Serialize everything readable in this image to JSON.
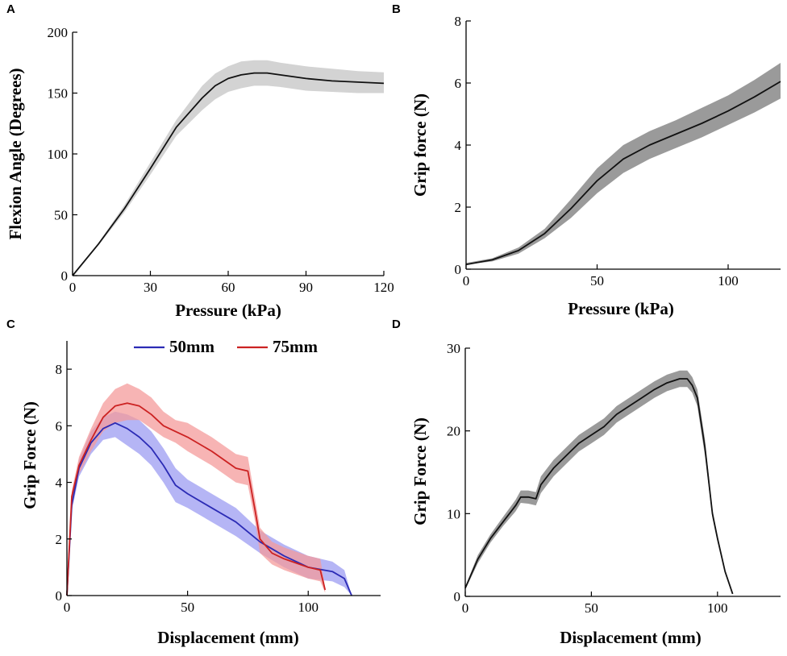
{
  "colors": {
    "band_gray_light": "#d3d3d3",
    "band_gray_dark": "#9a9a9a",
    "line_black": "#111111",
    "blue_line": "#2b2bb5",
    "blue_band": "#9c9cf2",
    "red_line": "#cc2222",
    "red_band": "#f49b9b"
  },
  "chart_data": [
    {
      "panel": "A",
      "type": "line",
      "xlabel": "Pressure (kPa)",
      "ylabel": "Flexion Angle (Degrees)",
      "xlim": [
        0,
        120
      ],
      "ylim": [
        0,
        200
      ],
      "xticks": [
        0,
        30,
        60,
        90,
        120
      ],
      "yticks": [
        0,
        50,
        100,
        150,
        200
      ],
      "series": [
        {
          "name": "mean",
          "color": "#111111",
          "band_color": "#d3d3d3",
          "x": [
            0,
            10,
            20,
            30,
            40,
            50,
            55,
            60,
            65,
            70,
            75,
            80,
            90,
            100,
            110,
            120
          ],
          "y": [
            0,
            26,
            55,
            88,
            122,
            146,
            156,
            162,
            165,
            166.5,
            166.5,
            165,
            162,
            160,
            159,
            158
          ],
          "lower": [
            0,
            25,
            52,
            83,
            115,
            136,
            145,
            151,
            154,
            156,
            156,
            155,
            152,
            151,
            150,
            150
          ],
          "upper": [
            0,
            27,
            58,
            93,
            128,
            156,
            166,
            172,
            176,
            177,
            177,
            175,
            172,
            170,
            168,
            167
          ]
        }
      ]
    },
    {
      "panel": "B",
      "type": "line",
      "xlabel": "Pressure (kPa)",
      "ylabel": "Grip force (N)",
      "xlim": [
        0,
        120
      ],
      "ylim": [
        0,
        8
      ],
      "xticks": [
        0,
        50,
        100
      ],
      "yticks": [
        0,
        2,
        4,
        6,
        8
      ],
      "series": [
        {
          "name": "mean",
          "color": "#111111",
          "band_color": "#9a9a9a",
          "x": [
            0,
            10,
            20,
            30,
            40,
            50,
            60,
            70,
            80,
            90,
            100,
            110,
            120
          ],
          "y": [
            0.15,
            0.3,
            0.6,
            1.15,
            1.95,
            2.85,
            3.55,
            4.0,
            4.35,
            4.7,
            5.1,
            5.55,
            6.05
          ],
          "lower": [
            0.15,
            0.25,
            0.5,
            1.0,
            1.65,
            2.45,
            3.1,
            3.55,
            3.9,
            4.25,
            4.65,
            5.05,
            5.5
          ],
          "upper": [
            0.2,
            0.35,
            0.7,
            1.3,
            2.25,
            3.25,
            4.0,
            4.45,
            4.8,
            5.2,
            5.6,
            6.1,
            6.65
          ]
        }
      ]
    },
    {
      "panel": "C",
      "type": "line",
      "xlabel": "Displacement (mm)",
      "ylabel": "Grip Force (N)",
      "xlim": [
        0,
        130
      ],
      "ylim": [
        0,
        9
      ],
      "xticks": [
        0,
        50,
        100
      ],
      "yticks": [
        0,
        2,
        4,
        6,
        8
      ],
      "legend": [
        "50mm",
        "75mm"
      ],
      "series": [
        {
          "name": "50mm",
          "color": "#2b2bb5",
          "band_color": "#9c9cf2",
          "x": [
            0,
            2,
            5,
            10,
            15,
            20,
            25,
            30,
            35,
            40,
            45,
            50,
            60,
            70,
            80,
            90,
            100,
            110,
            115,
            118
          ],
          "y": [
            0,
            3.2,
            4.5,
            5.4,
            5.9,
            6.1,
            5.9,
            5.6,
            5.2,
            4.6,
            3.9,
            3.6,
            3.1,
            2.6,
            1.9,
            1.4,
            1.0,
            0.85,
            0.6,
            0
          ],
          "lower": [
            0,
            3.0,
            4.2,
            5.0,
            5.5,
            5.6,
            5.3,
            5.0,
            4.6,
            4.0,
            3.3,
            3.1,
            2.6,
            2.1,
            1.5,
            1.0,
            0.6,
            0.5,
            0.3,
            0
          ],
          "upper": [
            0,
            3.4,
            4.8,
            5.8,
            6.3,
            6.5,
            6.4,
            6.2,
            5.8,
            5.2,
            4.5,
            4.1,
            3.6,
            3.1,
            2.3,
            1.8,
            1.4,
            1.2,
            0.9,
            0
          ]
        },
        {
          "name": "75mm",
          "color": "#cc2222",
          "band_color": "#f49b9b",
          "x": [
            0,
            2,
            5,
            10,
            15,
            20,
            25,
            30,
            35,
            40,
            45,
            50,
            60,
            70,
            75,
            78,
            80,
            85,
            90,
            100,
            105,
            107
          ],
          "y": [
            0,
            3.5,
            4.6,
            5.5,
            6.3,
            6.7,
            6.8,
            6.7,
            6.4,
            6.0,
            5.8,
            5.6,
            5.1,
            4.5,
            4.4,
            3.0,
            2.0,
            1.5,
            1.3,
            1.0,
            0.9,
            0.2
          ],
          "lower": [
            0,
            3.3,
            4.3,
            5.1,
            5.8,
            6.1,
            6.2,
            6.2,
            5.9,
            5.6,
            5.4,
            5.1,
            4.6,
            4.0,
            3.9,
            2.6,
            1.5,
            1.1,
            0.9,
            0.6,
            0.5,
            0.1
          ],
          "upper": [
            0,
            3.7,
            4.9,
            5.9,
            6.8,
            7.3,
            7.5,
            7.3,
            7.0,
            6.5,
            6.2,
            6.1,
            5.6,
            5.0,
            4.9,
            3.4,
            2.4,
            1.9,
            1.7,
            1.4,
            1.3,
            0.3
          ]
        }
      ]
    },
    {
      "panel": "D",
      "type": "line",
      "xlabel": "Displacement (mm)",
      "ylabel": "Grip Force (N)",
      "xlim": [
        0,
        125
      ],
      "ylim": [
        0,
        30
      ],
      "xticks": [
        0,
        50,
        100
      ],
      "yticks": [
        0,
        10,
        20,
        30
      ],
      "series": [
        {
          "name": "mean",
          "color": "#111111",
          "band_color": "#9a9a9a",
          "x": [
            0,
            5,
            10,
            15,
            20,
            22,
            25,
            28,
            30,
            35,
            40,
            45,
            50,
            55,
            60,
            65,
            70,
            75,
            80,
            85,
            88,
            90,
            92,
            95,
            98,
            100,
            103,
            106
          ],
          "y": [
            1,
            4.5,
            7,
            9,
            11,
            12,
            12,
            11.8,
            13.5,
            15.5,
            17,
            18.5,
            19.5,
            20.5,
            22,
            23,
            24,
            25,
            25.8,
            26.3,
            26.3,
            25.5,
            24,
            18,
            10,
            7,
            3,
            0.3
          ],
          "lower": [
            0.8,
            4,
            6.5,
            8.5,
            10.3,
            11.3,
            11.2,
            11,
            12.5,
            14.5,
            16,
            17.5,
            18.5,
            19.5,
            21,
            22,
            23,
            24,
            24.8,
            25.3,
            25.3,
            24.6,
            23,
            17,
            9.5,
            6.6,
            2.8,
            0.2
          ],
          "upper": [
            1.2,
            5,
            7.5,
            9.6,
            11.7,
            12.8,
            12.8,
            12.6,
            14.5,
            16.5,
            18,
            19.5,
            20.5,
            21.5,
            23,
            24,
            25,
            26,
            26.8,
            27.3,
            27.3,
            26.5,
            25,
            19,
            10.5,
            7.4,
            3.2,
            0.4
          ]
        }
      ]
    }
  ]
}
